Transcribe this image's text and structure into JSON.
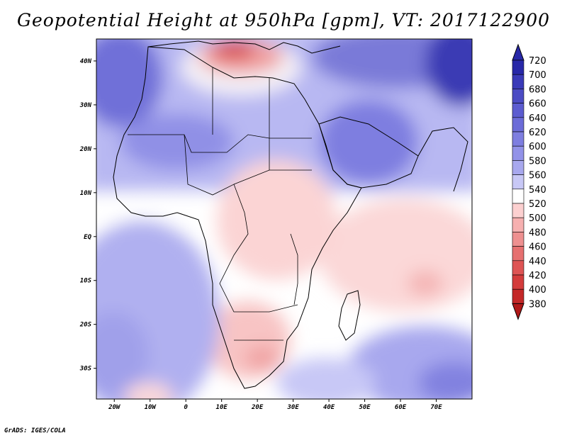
{
  "title": "Geopotential Height at 950hPa [gpm], VT: 2017122900",
  "footer": "GrADS: IGES/COLA",
  "map": {
    "lon_range": [
      -25,
      80
    ],
    "lat_range": [
      -37,
      45
    ],
    "lat_ticks": [
      {
        "value": 40,
        "label": "40N"
      },
      {
        "value": 30,
        "label": "30N"
      },
      {
        "value": 20,
        "label": "20N"
      },
      {
        "value": 10,
        "label": "10N"
      },
      {
        "value": 0,
        "label": "EQ"
      },
      {
        "value": -10,
        "label": "10S"
      },
      {
        "value": -20,
        "label": "20S"
      },
      {
        "value": -30,
        "label": "30S"
      }
    ],
    "lon_ticks": [
      {
        "value": -20,
        "label": "20W"
      },
      {
        "value": -10,
        "label": "10W"
      },
      {
        "value": 0,
        "label": "0"
      },
      {
        "value": 10,
        "label": "10E"
      },
      {
        "value": 20,
        "label": "20E"
      },
      {
        "value": 30,
        "label": "30E"
      },
      {
        "value": 40,
        "label": "40E"
      },
      {
        "value": 50,
        "label": "50E"
      },
      {
        "value": 60,
        "label": "60E"
      },
      {
        "value": 70,
        "label": "70E"
      }
    ]
  },
  "colorbar": {
    "levels": [
      720,
      700,
      680,
      660,
      640,
      620,
      600,
      580,
      560,
      540,
      520,
      500,
      480,
      460,
      440,
      420,
      400,
      380
    ],
    "colors": [
      "#2828a8",
      "#3a3ab8",
      "#4c4cc4",
      "#5c5cd0",
      "#6c6cd8",
      "#7e7ee0",
      "#9292e8",
      "#a8a8ee",
      "#c8c8f6",
      "#ffffff",
      "#fcd0d0",
      "#f6b0b0",
      "#ee9090",
      "#e67070",
      "#de5454",
      "#d43c3c",
      "#c42828",
      "#b01818"
    ]
  }
}
